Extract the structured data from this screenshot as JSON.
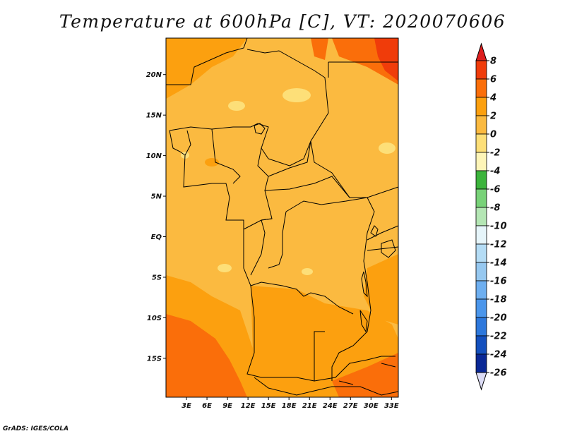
{
  "title": "Temperature at 600hPa [C], VT: 2020070606",
  "credit": "GrADS: IGES/COLA",
  "map": {
    "lat_ticks": [
      "20N",
      "15N",
      "10N",
      "5N",
      "EQ",
      "5S",
      "10S",
      "15S"
    ],
    "lon_ticks": [
      "3E",
      "6E",
      "9E",
      "12E",
      "15E",
      "18E",
      "21E",
      "24E",
      "27E",
      "30E",
      "33E"
    ],
    "lat_values": [
      20,
      15,
      10,
      5,
      0,
      -5,
      -10,
      -15
    ],
    "lon_values": [
      3,
      6,
      9,
      12,
      15,
      18,
      21,
      24,
      27,
      30,
      33
    ],
    "lat_range": [
      -19.8,
      24.5
    ],
    "lon_range": [
      0,
      34
    ]
  },
  "colorbar": {
    "labels": [
      "8",
      "6",
      "4",
      "2",
      "0",
      "-2",
      "-4",
      "-6",
      "-8",
      "-10",
      "-12",
      "-14",
      "-16",
      "-18",
      "-20",
      "-22",
      "-24",
      "-26"
    ],
    "colors": [
      "#dc1e1e",
      "#f03c0a",
      "#fa6e0a",
      "#fca00f",
      "#fbba40",
      "#fddf78",
      "#fef5b8",
      "#3cb43c",
      "#78d278",
      "#b4e6b4",
      "#e6f5fa",
      "#b4dcf5",
      "#96c8f0",
      "#6eaff0",
      "#4b96eb",
      "#2d78dc",
      "#1450be",
      "#0a2896",
      "#0a0a64",
      "#dcdcf5"
    ]
  },
  "legend_colors": {
    "t0_2": "#fbba40",
    "t2_4": "#fca00f",
    "t4_6": "#fa6e0a",
    "t6_8": "#f03c0a",
    "tm2_0": "#fddf78",
    "border": "#000000"
  }
}
